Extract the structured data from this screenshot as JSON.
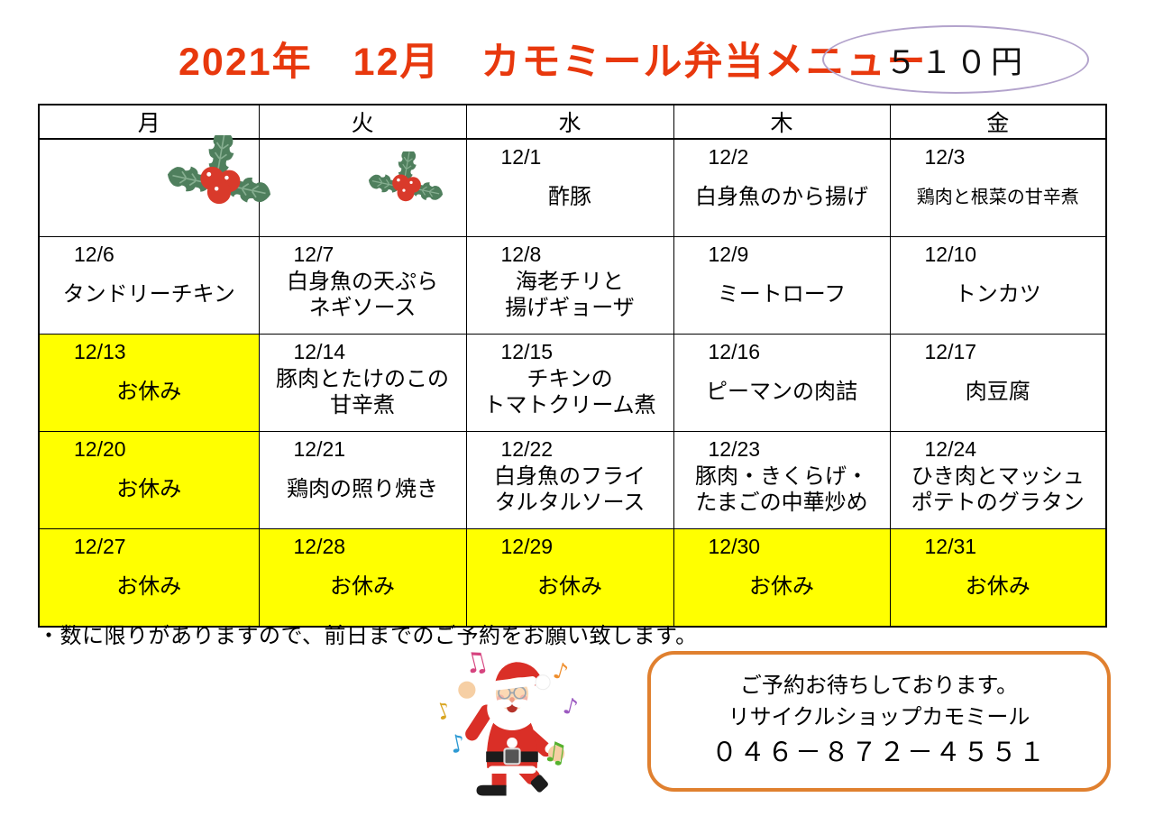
{
  "page": {
    "title": "2021年　12月　カモミール弁当メニュー",
    "price": "５１０円"
  },
  "calendar": {
    "weekdays": [
      "月",
      "火",
      "水",
      "木",
      "金"
    ],
    "rows": [
      {
        "cells": [
          {
            "date": "",
            "menu": ""
          },
          {
            "date": "",
            "menu": ""
          },
          {
            "date": "12/1",
            "menu": "酢豚"
          },
          {
            "date": "12/2",
            "menu": "白身魚のから揚げ"
          },
          {
            "date": "12/3",
            "menu": "鶏肉と根菜の甘辛煮",
            "small": true
          }
        ]
      },
      {
        "cells": [
          {
            "date": "12/6",
            "menu": "タンドリーチキン"
          },
          {
            "date": "12/7",
            "menu": "白身魚の天ぷら\nネギソース"
          },
          {
            "date": "12/8",
            "menu": "海老チリと\n揚げギョーザ"
          },
          {
            "date": "12/9",
            "menu": "ミートローフ"
          },
          {
            "date": "12/10",
            "menu": "トンカツ"
          }
        ]
      },
      {
        "cells": [
          {
            "date": "12/13",
            "menu": "お休み",
            "holiday": true
          },
          {
            "date": "12/14",
            "menu": "豚肉とたけのこの\n甘辛煮"
          },
          {
            "date": "12/15",
            "menu": "チキンの\nトマトクリーム煮"
          },
          {
            "date": "12/16",
            "menu": "ピーマンの肉詰"
          },
          {
            "date": "12/17",
            "menu": "肉豆腐"
          }
        ]
      },
      {
        "cells": [
          {
            "date": "12/20",
            "menu": "お休み",
            "holiday": true
          },
          {
            "date": "12/21",
            "menu": "鶏肉の照り焼き"
          },
          {
            "date": "12/22",
            "menu": "白身魚のフライ\nタルタルソース"
          },
          {
            "date": "12/23",
            "menu": "豚肉・きくらげ・\nたまごの中華炒め"
          },
          {
            "date": "12/24",
            "menu": "ひき肉とマッシュ\nポテトのグラタン"
          }
        ]
      },
      {
        "cells": [
          {
            "date": "12/27",
            "menu": "お休み",
            "holiday": true
          },
          {
            "date": "12/28",
            "menu": "お休み",
            "holiday": true
          },
          {
            "date": "12/29",
            "menu": "お休み",
            "holiday": true
          },
          {
            "date": "12/30",
            "menu": "お休み",
            "holiday": true
          },
          {
            "date": "12/31",
            "menu": "お休み",
            "holiday": true
          }
        ]
      }
    ]
  },
  "note": "・数に限りがありますので、前日までのご予約をお願い致します。",
  "contact": {
    "line1": "ご予約お待ちしております。",
    "line2": "リサイクルショップカモミール",
    "phone": "０４６－８７２－４５５１"
  },
  "decorations": {
    "holly_large": "holly-icon",
    "holly_small": "holly-icon",
    "santa": "dancing-santa-icon",
    "music_notes": [
      {
        "glyph": "♫",
        "color": "#d6447f"
      },
      {
        "glyph": "♪",
        "color": "#ef8f2e"
      },
      {
        "glyph": "♪",
        "color": "#d9a520"
      },
      {
        "glyph": "♪",
        "color": "#9b59c0"
      },
      {
        "glyph": "♪",
        "color": "#2e9ad3"
      },
      {
        "glyph": "♫",
        "color": "#56b22e"
      }
    ]
  },
  "colors": {
    "title_red": "#e8380d",
    "holiday_yellow": "#ffff00",
    "ellipse_border": "#b3a3cc",
    "contact_border": "#e0802f",
    "table_border": "#000000",
    "santa_red": "#da2f27",
    "holly_green": "#4f7f5d",
    "berry_red": "#d93a2b"
  }
}
